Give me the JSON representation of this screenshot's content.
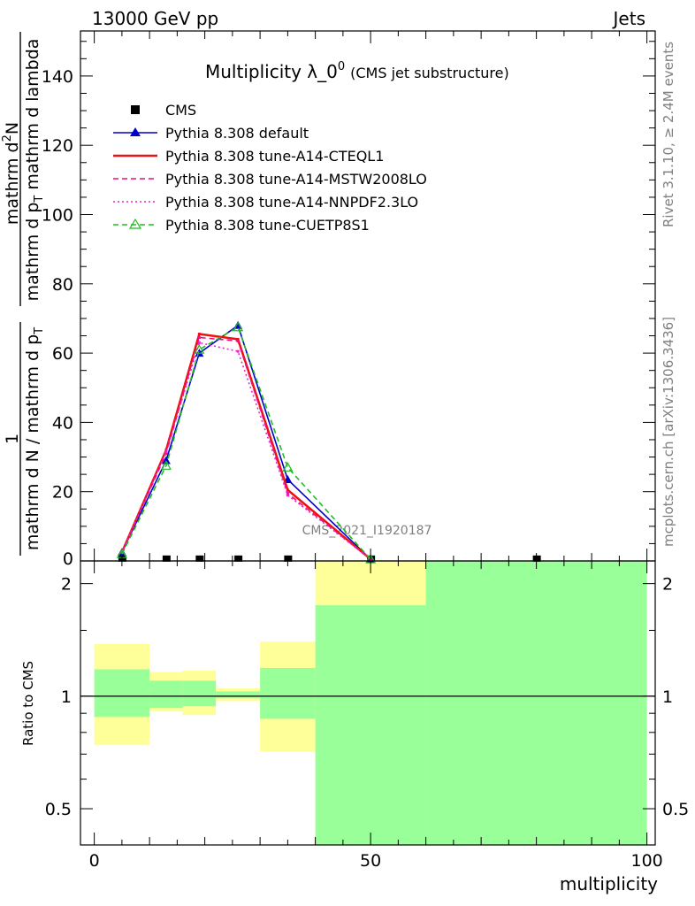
{
  "header": {
    "left": "13000 GeV pp",
    "right": "Jets"
  },
  "side_text": {
    "rivet": "Rivet 3.1.10, ≥ 2.4M events",
    "mcplots": "mcplots.cern.ch [arXiv:1306.3436]"
  },
  "chart_data": [
    {
      "type": "line",
      "title_main": "Multiplicity λ_0",
      "title_sup": "0",
      "title_sub": "(CMS jet substructure)",
      "watermark": "CMS_2021_I1920187",
      "ylabel_numerator": "mathrm d",
      "ylabel_numerator_sup": "2",
      "ylabel_numerator_tail": "N",
      "ylabel_denominator_tail": "mathrm d p",
      "ylabel_denominator_sub": "T",
      "ylabel_denominator_end": " mathrm d lambda",
      "ylabel_prefix_num": "1",
      "ylabel_prefix_den_a": "mathrm d N / mathrm d p",
      "ylabel_prefix_den_sub": "T",
      "xlim": [
        -2.5,
        101.5
      ],
      "ylim": [
        0,
        153
      ],
      "yticks": [
        "20",
        "40",
        "60",
        "80",
        "100",
        "120",
        "140"
      ],
      "ytick_values": [
        20,
        40,
        60,
        80,
        100,
        120,
        140
      ],
      "ytick_zero": "0",
      "series": [
        {
          "name": "CMS",
          "color": "#000000",
          "marker": "square",
          "x": [
            5,
            13,
            19,
            26,
            35,
            50,
            80
          ],
          "values": [
            0.3,
            0.3,
            0.3,
            0.3,
            0.3,
            0.3,
            0.3
          ]
        },
        {
          "name": "Pythia 8.308 default",
          "color": "#0000cc",
          "style": "solid",
          "marker": "triangle",
          "x": [
            5,
            13,
            19,
            26,
            35,
            50
          ],
          "values": [
            2.5,
            29,
            60,
            68,
            23.5,
            0.5
          ]
        },
        {
          "name": "Pythia 8.308 tune-A14-CTEQL1",
          "color": "#ee1111",
          "style": "solid",
          "width": 2.5,
          "x": [
            5,
            13,
            19,
            26,
            35,
            50
          ],
          "values": [
            2.5,
            32,
            65.5,
            64,
            20.5,
            0.5
          ]
        },
        {
          "name": "Pythia 8.308 tune-A14-MSTW2008LO",
          "color": "#ee1177",
          "style": "dashed",
          "x": [
            5,
            13,
            19,
            26,
            35,
            50
          ],
          "values": [
            2.5,
            31,
            64.5,
            63.5,
            19.5,
            0.5
          ]
        },
        {
          "name": "Pythia 8.308 tune-A14-NNPDF2.3LO",
          "color": "#ee22cc",
          "style": "dotted",
          "x": [
            5,
            13,
            19,
            26,
            35,
            50
          ],
          "values": [
            2.5,
            31.5,
            63,
            60.5,
            19,
            0.5
          ]
        },
        {
          "name": "Pythia 8.308 tune-CUETP8S1",
          "color": "#22bb22",
          "style": "dashed",
          "marker": "open-triangle",
          "x": [
            5,
            13,
            19,
            26,
            35,
            50
          ],
          "values": [
            2,
            27.5,
            61,
            67.5,
            27,
            0.5
          ]
        }
      ]
    },
    {
      "type": "area",
      "ylabel": "Ratio to CMS",
      "xlabel": "multiplicity",
      "xticks": [
        "0",
        "50",
        "100"
      ],
      "xtick_values": [
        0,
        50,
        100
      ],
      "yticks": [
        "0.5",
        "1",
        "2"
      ],
      "ytick_values": [
        0.5,
        1,
        2
      ],
      "ylim": [
        0.4,
        2.3
      ],
      "scale": "log",
      "reference_line": 1,
      "colors": {
        "outer_band": "#ffff99",
        "inner_band": "#99ff99"
      },
      "bins": [
        {
          "x": [
            0,
            10
          ],
          "outer": [
            0.74,
            1.38
          ],
          "inner": [
            0.88,
            1.18
          ]
        },
        {
          "x": [
            10,
            16
          ],
          "outer": [
            0.91,
            1.16
          ],
          "inner": [
            0.93,
            1.1
          ]
        },
        {
          "x": [
            16,
            22
          ],
          "outer": [
            0.89,
            1.17
          ],
          "inner": [
            0.94,
            1.1
          ]
        },
        {
          "x": [
            22,
            30
          ],
          "outer": [
            0.97,
            1.05
          ],
          "inner": [
            0.99,
            1.03
          ]
        },
        {
          "x": [
            30,
            40
          ],
          "outer": [
            0.71,
            1.4
          ],
          "inner": [
            0.87,
            1.19
          ]
        },
        {
          "x": [
            40,
            60
          ],
          "outer": [
            0.4,
            2.3
          ],
          "inner": [
            0.4,
            1.75
          ]
        },
        {
          "x": [
            60,
            100
          ],
          "outer": [
            0.4,
            2.3
          ],
          "inner": [
            0.4,
            2.3
          ]
        }
      ]
    }
  ]
}
